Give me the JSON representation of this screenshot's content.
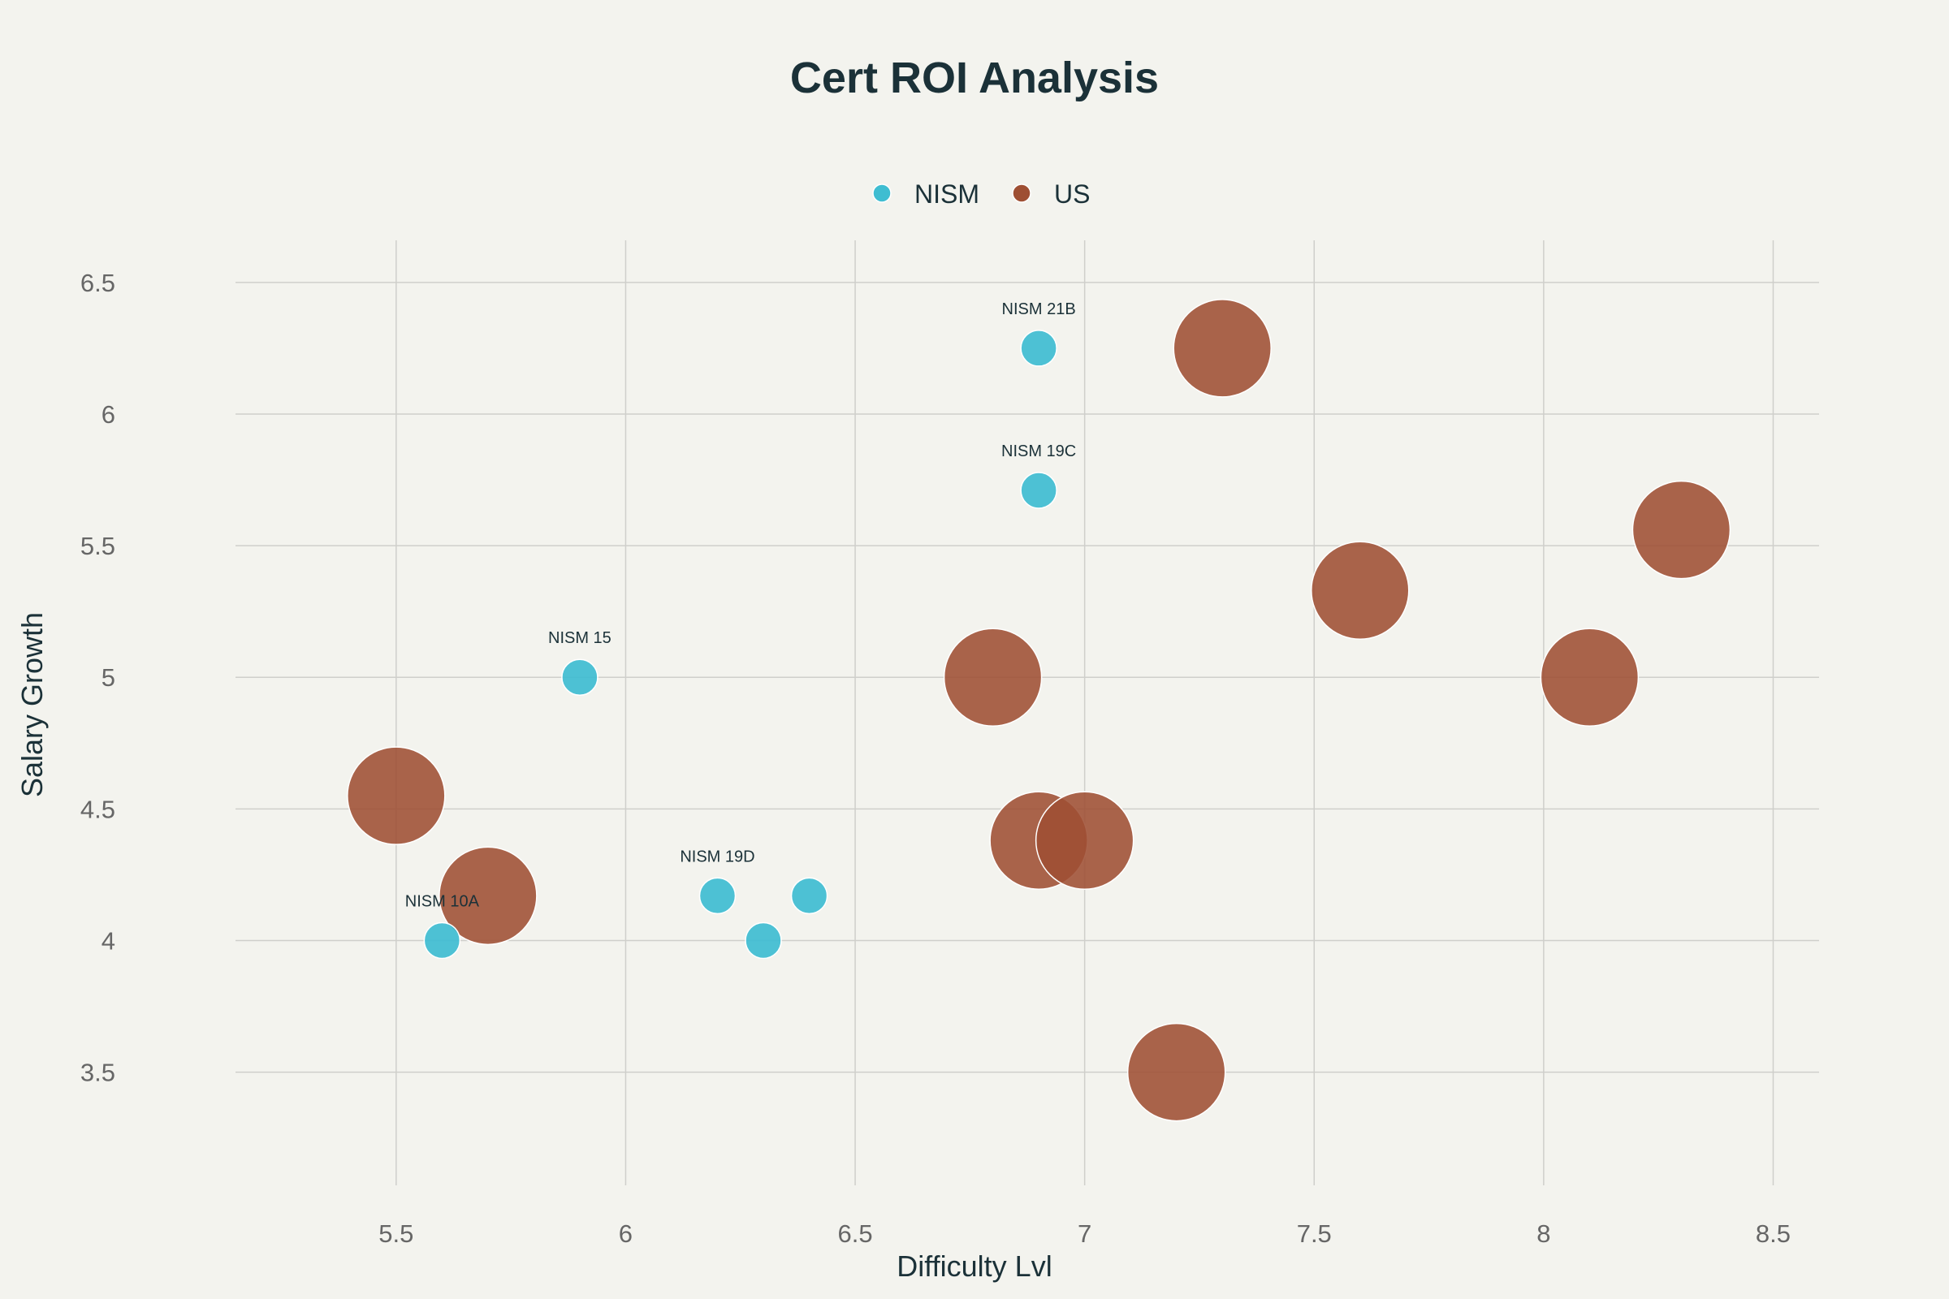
{
  "chart_data": {
    "type": "scatter",
    "title": "Cert ROI Analysis",
    "xlabel": "Difficulty Lvl",
    "ylabel": "Salary Growth",
    "xlim": [
      5.15,
      8.6
    ],
    "ylim": [
      3.07,
      6.66
    ],
    "x_ticks": [
      5.5,
      6,
      6.5,
      7,
      7.5,
      8,
      8.5
    ],
    "x_tick_labels": [
      "5.5",
      "6",
      "6.5",
      "7",
      "7.5",
      "8",
      "8.5"
    ],
    "y_ticks": [
      3.5,
      4,
      4.5,
      5,
      5.5,
      6,
      6.5
    ],
    "y_tick_labels": [
      "3.5",
      "4",
      "4.5",
      "5",
      "5.5",
      "6",
      "6.5"
    ],
    "grid": true,
    "legend": {
      "placement": "top-center",
      "orientation": "horizontal"
    },
    "series": [
      {
        "name": "NISM",
        "color": "#3fbdd1",
        "marker_size": "small",
        "points": [
          {
            "x": 6.9,
            "y": 6.25,
            "label": "NISM 21B"
          },
          {
            "x": 6.9,
            "y": 5.71,
            "label": "NISM 19C"
          },
          {
            "x": 5.9,
            "y": 5.0,
            "label": "NISM 15"
          },
          {
            "x": 6.2,
            "y": 4.17,
            "label": "NISM 19D"
          },
          {
            "x": 6.4,
            "y": 4.17,
            "label": ""
          },
          {
            "x": 6.3,
            "y": 4.0,
            "label": ""
          },
          {
            "x": 5.6,
            "y": 4.0,
            "label": "NISM 10A"
          }
        ]
      },
      {
        "name": "US",
        "color": "#9e4f33",
        "marker_size": "large",
        "points": [
          {
            "x": 7.3,
            "y": 6.25
          },
          {
            "x": 8.3,
            "y": 5.56
          },
          {
            "x": 7.6,
            "y": 5.33
          },
          {
            "x": 6.8,
            "y": 5.0
          },
          {
            "x": 8.1,
            "y": 5.0
          },
          {
            "x": 5.5,
            "y": 4.55
          },
          {
            "x": 6.9,
            "y": 4.38
          },
          {
            "x": 7.0,
            "y": 4.38
          },
          {
            "x": 5.7,
            "y": 4.17
          },
          {
            "x": 7.2,
            "y": 3.5
          }
        ]
      }
    ]
  }
}
